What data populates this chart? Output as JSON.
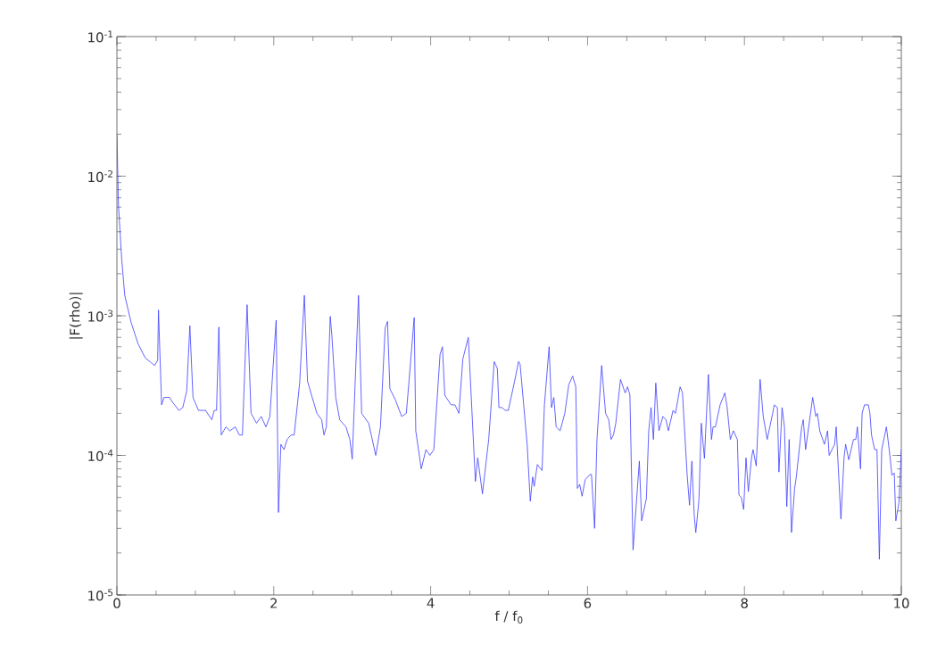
{
  "chart_data": {
    "type": "line",
    "xlabel": "f / f$_{0}$",
    "ylabel": "|F(rho)|",
    "log": true,
    "marker": "none",
    "line_style": "solid",
    "grid": false,
    "legend": false,
    "xlim": [
      0,
      10
    ],
    "xticks": [
      0,
      2,
      4,
      6,
      8,
      10
    ],
    "ylim": [
      1e-05,
      0.1
    ],
    "yticks": [
      {
        "value": 1e-05,
        "label": "10$^{-5}$"
      },
      {
        "value": 0.0001,
        "label": "10$^{-4}$"
      },
      {
        "value": 0.001,
        "label": "10$^{-3}$"
      },
      {
        "value": 0.01,
        "label": "10$^{-2}$"
      },
      {
        "value": 0.1,
        "label": "10$^{-1}$"
      }
    ],
    "x": [
      0,
      0.02,
      0.06,
      0.1,
      0.18,
      0.27,
      0.36,
      0.44,
      0.48,
      0.52,
      0.53,
      0.57,
      0.6,
      0.67,
      0.71,
      0.79,
      0.84,
      0.89,
      0.93,
      0.97,
      1.04,
      1.13,
      1.21,
      1.24,
      1.27,
      1.3,
      1.33,
      1.39,
      1.44,
      1.51,
      1.56,
      1.6,
      1.66,
      1.71,
      1.78,
      1.84,
      1.9,
      1.95,
      2.03,
      2.06,
      2.09,
      2.13,
      2.17,
      2.22,
      2.26,
      2.33,
      2.39,
      2.43,
      2.49,
      2.55,
      2.61,
      2.64,
      2.67,
      2.72,
      2.74,
      2.79,
      2.84,
      2.92,
      2.97,
      3.0,
      3.08,
      3.12,
      3.21,
      3.3,
      3.36,
      3.42,
      3.45,
      3.48,
      3.55,
      3.63,
      3.69,
      3.79,
      3.81,
      3.88,
      3.94,
      3.99,
      4.04,
      4.12,
      4.15,
      4.18,
      4.26,
      4.31,
      4.36,
      4.41,
      4.48,
      4.57,
      4.6,
      4.66,
      4.74,
      4.81,
      4.85,
      4.87,
      4.91,
      4.95,
      4.99,
      5.07,
      5.12,
      5.14,
      5.23,
      5.27,
      5.3,
      5.32,
      5.36,
      5.42,
      5.45,
      5.51,
      5.54,
      5.57,
      5.6,
      5.65,
      5.71,
      5.76,
      5.81,
      5.85,
      5.87,
      5.9,
      5.93,
      5.97,
      6.03,
      6.05,
      6.09,
      6.12,
      6.18,
      6.23,
      6.27,
      6.3,
      6.33,
      6.36,
      6.42,
      6.48,
      6.51,
      6.54,
      6.58,
      6.66,
      6.69,
      6.75,
      6.78,
      6.81,
      6.84,
      6.87,
      6.91,
      6.96,
      7.0,
      7.03,
      7.09,
      7.12,
      7.14,
      7.18,
      7.21,
      7.27,
      7.3,
      7.33,
      7.36,
      7.38,
      7.42,
      7.45,
      7.49,
      7.54,
      7.58,
      7.6,
      7.63,
      7.69,
      7.75,
      7.78,
      7.82,
      7.86,
      7.91,
      7.93,
      7.96,
      7.99,
      8.02,
      8.05,
      8.09,
      8.11,
      8.15,
      8.2,
      8.24,
      8.29,
      8.36,
      8.38,
      8.42,
      8.44,
      8.48,
      8.51,
      8.54,
      8.57,
      8.6,
      8.64,
      8.66,
      8.73,
      8.75,
      8.78,
      8.87,
      8.91,
      8.93,
      8.96,
      9.02,
      9.06,
      9.08,
      9.15,
      9.17,
      9.23,
      9.27,
      9.29,
      9.33,
      9.39,
      9.42,
      9.44,
      9.48,
      9.5,
      9.53,
      9.58,
      9.6,
      9.62,
      9.66,
      9.69,
      9.72,
      9.75,
      9.81,
      9.85,
      9.88,
      9.91,
      9.93,
      9.97,
      10.0
    ],
    "series": [
      {
        "color": "#3c3cff",
        "values": [
          0.02,
          0.0062,
          0.0026,
          0.0014,
          0.0009,
          0.00063,
          0.0005,
          0.00046,
          0.00044,
          0.00048,
          0.0011,
          0.00023,
          0.00026,
          0.00026,
          0.00024,
          0.00021,
          0.00022,
          0.00029,
          0.00085,
          0.00026,
          0.00021,
          0.00021,
          0.00018,
          0.00021,
          0.00021,
          0.00083,
          0.00014,
          0.00016,
          0.00015,
          0.00016,
          0.00014,
          0.00014,
          0.0012,
          0.0002,
          0.00017,
          0.00019,
          0.00016,
          0.00019,
          0.00093,
          3.9e-05,
          0.00012,
          0.00011,
          0.00013,
          0.00014,
          0.00014,
          0.00033,
          0.0014,
          0.00034,
          0.00026,
          0.0002,
          0.00018,
          0.00014,
          0.00016,
          0.00099,
          0.00073,
          0.00026,
          0.00018,
          0.00016,
          0.00013,
          9.4e-05,
          0.0014,
          0.0002,
          0.00017,
          0.0001,
          0.00016,
          0.00082,
          0.00091,
          0.0003,
          0.00025,
          0.00019,
          0.0002,
          0.00097,
          0.00015,
          8e-05,
          0.00011,
          0.0001,
          0.00011,
          0.00053,
          0.0006,
          0.00027,
          0.00023,
          0.00023,
          0.0002,
          0.00049,
          0.0007,
          6.5e-05,
          9.6e-05,
          5.3e-05,
          0.00013,
          0.00047,
          0.00042,
          0.00022,
          0.00022,
          0.00021,
          0.00021,
          0.00034,
          0.00047,
          0.00045,
          0.00012,
          4.7e-05,
          7e-05,
          6e-05,
          8.6e-05,
          7.8e-05,
          0.00023,
          0.0006,
          0.00022,
          0.00026,
          0.00016,
          0.00015,
          0.0002,
          0.00032,
          0.00037,
          0.00031,
          5.8e-05,
          6.2e-05,
          5.1e-05,
          6.7e-05,
          7.3e-05,
          7.3e-05,
          3e-05,
          0.00013,
          0.00044,
          0.0002,
          0.00018,
          0.00013,
          0.00014,
          0.00017,
          0.00035,
          0.00028,
          0.00031,
          0.00027,
          2.1e-05,
          9.1e-05,
          3.4e-05,
          4.9e-05,
          0.00015,
          0.00022,
          0.00013,
          0.00033,
          0.00015,
          0.00019,
          0.00018,
          0.00015,
          0.00021,
          0.0002,
          0.00023,
          0.00031,
          0.00028,
          7.2e-05,
          4.4e-05,
          9.1e-05,
          3.7e-05,
          2.8e-05,
          4.8e-05,
          0.00017,
          9.5e-05,
          0.00038,
          0.00013,
          0.00016,
          0.00016,
          0.00023,
          0.00028,
          0.00022,
          0.00013,
          0.00015,
          0.00013,
          5.2e-05,
          5e-05,
          4.1e-05,
          9.6e-05,
          5.5e-05,
          9.6e-05,
          0.00011,
          8.4e-05,
          0.00035,
          0.00019,
          0.00013,
          0.0002,
          0.00023,
          0.00022,
          7.6e-05,
          0.00022,
          0.00016,
          4.3e-05,
          0.00013,
          2.8e-05,
          5.8e-05,
          6.9e-05,
          0.00016,
          0.00018,
          0.00011,
          0.00026,
          0.00019,
          0.0002,
          0.00015,
          0.00012,
          0.00015,
          0.0001,
          0.00012,
          0.00016,
          3.5e-05,
          9.6e-05,
          0.00012,
          9.3e-05,
          0.00013,
          0.00013,
          0.00016,
          8e-05,
          0.0002,
          0.00023,
          0.00023,
          0.0002,
          0.00014,
          0.00011,
          0.00011,
          1.8e-05,
          0.00011,
          0.00016,
          0.000105,
          7.2e-05,
          7.5e-05,
          3.4e-05,
          4.6e-05,
          0.00011
        ]
      }
    ]
  }
}
